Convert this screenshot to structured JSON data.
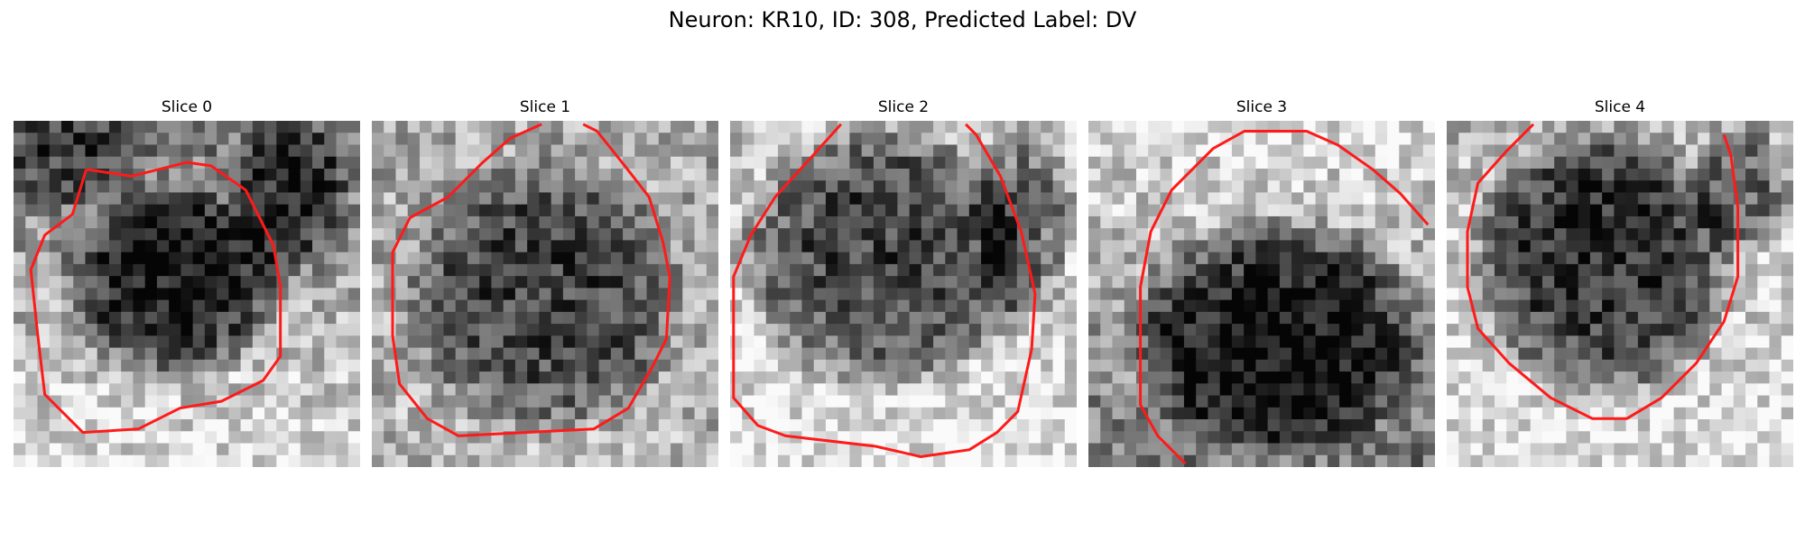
{
  "figure": {
    "title": "Neuron: KR10, ID: 308, Predicted Label: DV"
  },
  "panels": [
    {
      "title": "Slice 0"
    },
    {
      "title": "Slice 1"
    },
    {
      "title": "Slice 2"
    },
    {
      "title": "Slice 3"
    },
    {
      "title": "Slice 4"
    }
  ],
  "colors": {
    "contour": "#ff1a1a",
    "colormap": "grayscale-reversed"
  }
}
